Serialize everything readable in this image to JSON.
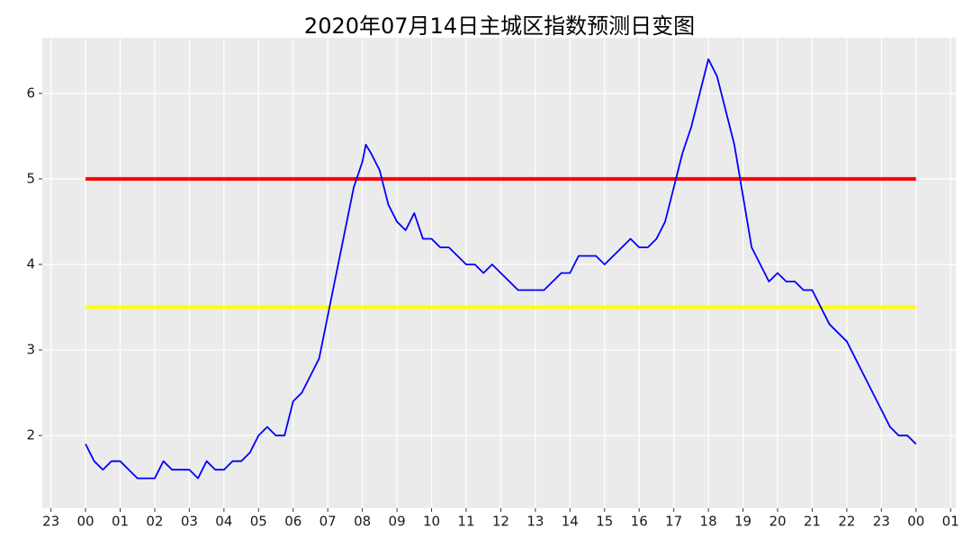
{
  "chart_data": {
    "type": "line",
    "title": "2020年07月14日主城区指数预测日变图",
    "x": [
      0,
      0.25,
      0.5,
      0.75,
      1,
      1.25,
      1.5,
      1.75,
      2,
      2.25,
      2.5,
      2.75,
      3,
      3.25,
      3.5,
      3.75,
      4,
      4.25,
      4.5,
      4.75,
      5,
      5.25,
      5.5,
      5.75,
      6,
      6.25,
      6.5,
      6.75,
      7,
      7.25,
      7.5,
      7.75,
      8,
      8.1,
      8.25,
      8.5,
      8.75,
      9,
      9.25,
      9.5,
      9.75,
      10,
      10.25,
      10.5,
      10.75,
      11,
      11.25,
      11.5,
      11.75,
      12,
      12.25,
      12.5,
      12.75,
      13,
      13.25,
      13.5,
      13.75,
      14,
      14.25,
      14.5,
      14.75,
      15,
      15.25,
      15.5,
      15.75,
      16,
      16.25,
      16.5,
      16.75,
      17,
      17.25,
      17.5,
      17.75,
      18,
      18.25,
      18.5,
      18.75,
      19,
      19.25,
      19.5,
      19.75,
      20,
      20.25,
      20.5,
      20.75,
      21,
      21.25,
      21.5,
      21.75,
      22,
      22.25,
      22.5,
      22.75,
      23,
      23.25,
      23.5,
      23.75,
      24
    ],
    "series": [
      {
        "color": "#0000ff",
        "values": [
          1.9,
          1.7,
          1.6,
          1.7,
          1.7,
          1.6,
          1.5,
          1.5,
          1.5,
          1.7,
          1.6,
          1.6,
          1.6,
          1.5,
          1.7,
          1.6,
          1.6,
          1.7,
          1.7,
          1.8,
          2.0,
          2.1,
          2.0,
          2.0,
          2.4,
          2.5,
          2.7,
          2.9,
          3.4,
          3.9,
          4.4,
          4.9,
          5.2,
          5.4,
          5.3,
          5.1,
          4.7,
          4.5,
          4.4,
          4.6,
          4.3,
          4.3,
          4.2,
          4.2,
          4.1,
          4.0,
          4.0,
          3.9,
          4.0,
          3.9,
          3.8,
          3.7,
          3.7,
          3.7,
          3.7,
          3.8,
          3.9,
          3.9,
          4.1,
          4.1,
          4.1,
          4.0,
          4.1,
          4.2,
          4.3,
          4.2,
          4.2,
          4.3,
          4.5,
          4.9,
          5.3,
          5.6,
          6.0,
          6.4,
          6.2,
          5.8,
          5.4,
          4.8,
          4.2,
          4.0,
          3.8,
          3.9,
          3.8,
          3.8,
          3.7,
          3.7,
          3.5,
          3.3,
          3.2,
          3.1,
          2.9,
          2.7,
          2.5,
          2.3,
          2.1,
          2.0,
          2.0,
          1.9
        ]
      }
    ],
    "reference_lines": [
      {
        "y": 5,
        "color": "#ff0000"
      },
      {
        "y": 3.5,
        "color": "#ffff00"
      }
    ],
    "xlim": [
      -1.25,
      25.15
    ],
    "xticks": [
      {
        "value": -1,
        "label": "23"
      },
      {
        "value": 0,
        "label": "00"
      },
      {
        "value": 1,
        "label": "01"
      },
      {
        "value": 2,
        "label": "02"
      },
      {
        "value": 3,
        "label": "03"
      },
      {
        "value": 4,
        "label": "04"
      },
      {
        "value": 5,
        "label": "05"
      },
      {
        "value": 6,
        "label": "06"
      },
      {
        "value": 7,
        "label": "07"
      },
      {
        "value": 8,
        "label": "08"
      },
      {
        "value": 9,
        "label": "09"
      },
      {
        "value": 10,
        "label": "10"
      },
      {
        "value": 11,
        "label": "11"
      },
      {
        "value": 12,
        "label": "12"
      },
      {
        "value": 13,
        "label": "13"
      },
      {
        "value": 14,
        "label": "14"
      },
      {
        "value": 15,
        "label": "15"
      },
      {
        "value": 16,
        "label": "16"
      },
      {
        "value": 17,
        "label": "17"
      },
      {
        "value": 18,
        "label": "18"
      },
      {
        "value": 19,
        "label": "19"
      },
      {
        "value": 20,
        "label": "20"
      },
      {
        "value": 21,
        "label": "21"
      },
      {
        "value": 22,
        "label": "22"
      },
      {
        "value": 23,
        "label": "23"
      },
      {
        "value": 24,
        "label": "00"
      },
      {
        "value": 25,
        "label": "01"
      }
    ],
    "ylim": [
      1.15,
      6.65
    ],
    "yticks": [
      2,
      3,
      4,
      5,
      6
    ],
    "grid": true
  }
}
